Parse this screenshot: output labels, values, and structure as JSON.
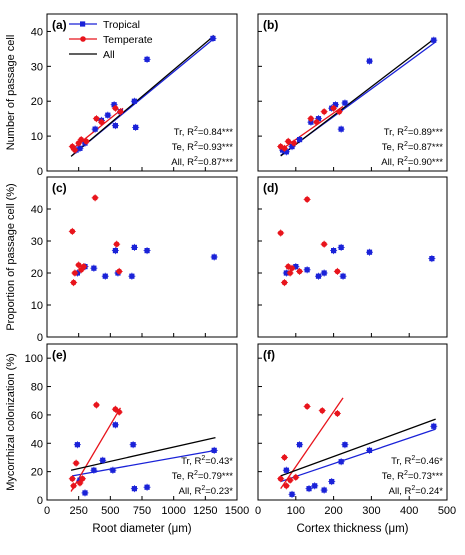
{
  "colors": {
    "tropical": "#1a22d8",
    "temperate": "#e8141c",
    "all": "#000000"
  },
  "legend": {
    "tropical": "Tropical",
    "temperate": "Temperate",
    "all": "All"
  },
  "axis_labels": {
    "y_row1": "Number of passage cell",
    "y_row2": "Proportion of passage cell (%)",
    "y_row3": "Mycorrhizal colonization (%)",
    "x_left": "Root diameter (μm)",
    "x_right": "Cortex thickness (μm)"
  },
  "chart_data": [
    {
      "type": "scatter",
      "panel": "(a)",
      "xlim": [
        0,
        1500
      ],
      "ylim": [
        0,
        45
      ],
      "xticks": [
        0,
        250,
        500,
        750,
        1000,
        1250,
        1500
      ],
      "yticks": [
        0,
        10,
        20,
        30,
        40
      ],
      "series": [
        {
          "name": "Tropical",
          "color": "#1a22d8",
          "points": [
            [
              230,
              6
            ],
            [
              260,
              6.5
            ],
            [
              300,
              8
            ],
            [
              380,
              12
            ],
            [
              430,
              14.5
            ],
            [
              480,
              16
            ],
            [
              530,
              19
            ],
            [
              540,
              13
            ],
            [
              580,
              17
            ],
            [
              690,
              20
            ],
            [
              700,
              12.5
            ],
            [
              790,
              32
            ],
            [
              1310,
              38
            ]
          ],
          "fit": [
            [
              200,
              4.5
            ],
            [
              1320,
              38
            ]
          ]
        },
        {
          "name": "Temperate",
          "color": "#e8141c",
          "points": [
            [
              200,
              7
            ],
            [
              220,
              6
            ],
            [
              250,
              8
            ],
            [
              270,
              9
            ],
            [
              310,
              8.5
            ],
            [
              390,
              15
            ],
            [
              430,
              14
            ],
            [
              540,
              18
            ],
            [
              580,
              17
            ]
          ],
          "fit": [
            [
              190,
              6
            ],
            [
              600,
              18
            ]
          ]
        },
        {
          "name": "All",
          "color": "#000000",
          "fit": [
            [
              190,
              4.2
            ],
            [
              1320,
              38.8
            ]
          ]
        }
      ],
      "annotations": [
        "Tr, R2=0.84***",
        "Te, R2=0.93***",
        "All, R2=0.87***"
      ]
    },
    {
      "type": "scatter",
      "panel": "(b)",
      "xlim": [
        0,
        500
      ],
      "ylim": [
        0,
        45
      ],
      "xticks": [
        0,
        100,
        200,
        300,
        400,
        500
      ],
      "yticks": [
        0,
        10,
        20,
        30,
        40
      ],
      "series": [
        {
          "name": "Tropical",
          "color": "#1a22d8",
          "points": [
            [
              65,
              6
            ],
            [
              75,
              5.5
            ],
            [
              90,
              7
            ],
            [
              110,
              9
            ],
            [
              140,
              14
            ],
            [
              160,
              15
            ],
            [
              195,
              18
            ],
            [
              205,
              19
            ],
            [
              220,
              12
            ],
            [
              230,
              19.5
            ],
            [
              295,
              31.5
            ],
            [
              465,
              37.5
            ]
          ],
          "fit": [
            [
              60,
              4.5
            ],
            [
              470,
              37
            ]
          ]
        },
        {
          "name": "Temperate",
          "color": "#e8141c",
          "points": [
            [
              60,
              7
            ],
            [
              70,
              6.5
            ],
            [
              80,
              8.5
            ],
            [
              95,
              8
            ],
            [
              140,
              15
            ],
            [
              155,
              14
            ],
            [
              175,
              17
            ],
            [
              200,
              18
            ],
            [
              215,
              17
            ]
          ],
          "fit": [
            [
              60,
              6
            ],
            [
              225,
              18.5
            ]
          ]
        },
        {
          "name": "All",
          "color": "#000000",
          "fit": [
            [
              60,
              4.3
            ],
            [
              470,
              38.2
            ]
          ]
        }
      ],
      "annotations": [
        "Tr, R2=0.89***",
        "Te, R2=0.87***",
        "All, R2=0.90***"
      ]
    },
    {
      "type": "scatter",
      "panel": "(c)",
      "xlim": [
        0,
        1500
      ],
      "ylim": [
        0,
        50
      ],
      "xticks": [
        0,
        250,
        500,
        750,
        1000,
        1250,
        1500
      ],
      "yticks": [
        0,
        10,
        20,
        30,
        40
      ],
      "series": [
        {
          "name": "Tropical",
          "color": "#1a22d8",
          "points": [
            [
              240,
              20
            ],
            [
              300,
              22
            ],
            [
              370,
              21.5
            ],
            [
              460,
              19
            ],
            [
              540,
              27
            ],
            [
              560,
              20
            ],
            [
              670,
              19
            ],
            [
              690,
              28
            ],
            [
              790,
              27
            ],
            [
              1320,
              25
            ]
          ]
        },
        {
          "name": "Temperate",
          "color": "#e8141c",
          "points": [
            [
              200,
              33
            ],
            [
              210,
              17
            ],
            [
              220,
              20
            ],
            [
              250,
              22.5
            ],
            [
              270,
              21
            ],
            [
              290,
              22
            ],
            [
              380,
              43.5
            ],
            [
              550,
              29
            ],
            [
              570,
              20.5
            ]
          ]
        }
      ]
    },
    {
      "type": "scatter",
      "panel": "(d)",
      "xlim": [
        0,
        500
      ],
      "ylim": [
        0,
        50
      ],
      "xticks": [
        0,
        100,
        200,
        300,
        400,
        500
      ],
      "yticks": [
        0,
        10,
        20,
        30,
        40
      ],
      "series": [
        {
          "name": "Tropical",
          "color": "#1a22d8",
          "points": [
            [
              75,
              20
            ],
            [
              100,
              22
            ],
            [
              130,
              21
            ],
            [
              160,
              19
            ],
            [
              200,
              27
            ],
            [
              220,
              28
            ],
            [
              225,
              19
            ],
            [
              175,
              20
            ],
            [
              295,
              26.5
            ],
            [
              460,
              24.5
            ]
          ]
        },
        {
          "name": "Temperate",
          "color": "#e8141c",
          "points": [
            [
              60,
              32.5
            ],
            [
              70,
              17
            ],
            [
              80,
              22
            ],
            [
              90,
              21.5
            ],
            [
              110,
              20.5
            ],
            [
              130,
              43
            ],
            [
              175,
              29
            ],
            [
              210,
              20.5
            ],
            [
              85,
              20
            ]
          ]
        }
      ]
    },
    {
      "type": "scatter",
      "panel": "(e)",
      "xlim": [
        0,
        1500
      ],
      "ylim": [
        0,
        110
      ],
      "xticks": [
        0,
        250,
        500,
        750,
        1000,
        1250,
        1500
      ],
      "yticks": [
        0,
        20,
        40,
        60,
        80,
        100
      ],
      "series": [
        {
          "name": "Tropical",
          "color": "#1a22d8",
          "points": [
            [
              240,
              39
            ],
            [
              260,
              14
            ],
            [
              300,
              5
            ],
            [
              370,
              21
            ],
            [
              440,
              28
            ],
            [
              520,
              21
            ],
            [
              540,
              53
            ],
            [
              680,
              39
            ],
            [
              690,
              8
            ],
            [
              790,
              9
            ],
            [
              1320,
              35
            ]
          ],
          "fit": [
            [
              200,
              17
            ],
            [
              1330,
              35
            ]
          ]
        },
        {
          "name": "Temperate",
          "color": "#e8141c",
          "points": [
            [
              200,
              15
            ],
            [
              210,
              10
            ],
            [
              230,
              26
            ],
            [
              260,
              12
            ],
            [
              280,
              15
            ],
            [
              390,
              67
            ],
            [
              540,
              64
            ],
            [
              570,
              62
            ]
          ],
          "fit": [
            [
              190,
              6
            ],
            [
              580,
              65
            ]
          ]
        },
        {
          "name": "All",
          "color": "#000000",
          "fit": [
            [
              190,
              21
            ],
            [
              1330,
              44
            ]
          ]
        }
      ],
      "annotations": [
        "Tr, R2=0.43*",
        "Te, R2=0.79***",
        "All, R2=0.23*"
      ]
    },
    {
      "type": "scatter",
      "panel": "(f)",
      "xlim": [
        0,
        500
      ],
      "ylim": [
        0,
        110
      ],
      "xticks": [
        0,
        100,
        200,
        300,
        400,
        500
      ],
      "yticks": [
        0,
        20,
        40,
        60,
        80,
        100
      ],
      "series": [
        {
          "name": "Tropical",
          "color": "#1a22d8",
          "points": [
            [
              75,
              21
            ],
            [
              90,
              4
            ],
            [
              110,
              39
            ],
            [
              135,
              8
            ],
            [
              150,
              10
            ],
            [
              175,
              7
            ],
            [
              195,
              13
            ],
            [
              220,
              27
            ],
            [
              230,
              39
            ],
            [
              295,
              35
            ],
            [
              465,
              52
            ]
          ],
          "fit": [
            [
              60,
              13
            ],
            [
              470,
              50
            ]
          ]
        },
        {
          "name": "Temperate",
          "color": "#e8141c",
          "points": [
            [
              60,
              15
            ],
            [
              70,
              30
            ],
            [
              75,
              10
            ],
            [
              85,
              14
            ],
            [
              100,
              16
            ],
            [
              130,
              66
            ],
            [
              170,
              63
            ],
            [
              210,
              61
            ]
          ],
          "fit": [
            [
              60,
              8
            ],
            [
              225,
              72
            ]
          ]
        },
        {
          "name": "All",
          "color": "#000000",
          "fit": [
            [
              60,
              17
            ],
            [
              470,
              57
            ]
          ]
        }
      ],
      "annotations": [
        "Tr, R2=0.46*",
        "Te, R2=0.73***",
        "All, R2=0.24*"
      ]
    }
  ]
}
